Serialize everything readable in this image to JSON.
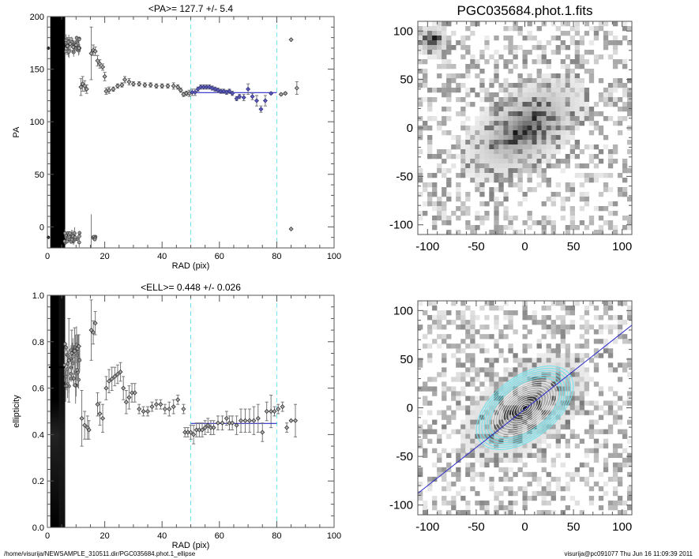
{
  "colors": {
    "points": "#000000",
    "errorbars": "#777777",
    "fit_points": "#5a5ab4",
    "fit_line": "#2a2ac8",
    "range_lines": "#6fe3ee",
    "ellipse_white": "#ffffff",
    "ellipse_cyan": "#6fe3ee"
  },
  "footer": {
    "left": "/home/visurija/NEWSAMPLE_310511.dir/PGC035684.phot.1_ellipse",
    "right": "visurija@pc091077  Thu Jun 16 11:09:39 2011"
  },
  "chart_data": [
    {
      "type": "scatter",
      "title": "<PA>= 127.7 +/-   5.4",
      "xlabel": "RAD (pix)",
      "ylabel": "PA",
      "xlim": [
        0,
        100
      ],
      "ylim": [
        -20,
        200
      ],
      "xticks": [
        "0",
        "20",
        "40",
        "60",
        "80",
        "100"
      ],
      "yticks": [
        "0",
        "50",
        "100",
        "150",
        "200"
      ],
      "fit_range": [
        50,
        80
      ],
      "fit_value": 127.7,
      "fit_error": 5.4,
      "points": [
        {
          "x": 7,
          "y": 172,
          "e": 8
        },
        {
          "x": 8,
          "y": 174,
          "e": 6
        },
        {
          "x": 9,
          "y": 171,
          "e": 5
        },
        {
          "x": 10,
          "y": 173,
          "e": 4
        },
        {
          "x": 11,
          "y": 170,
          "e": 3
        },
        {
          "x": 11.7,
          "y": 133,
          "e": 8
        },
        {
          "x": 12.3,
          "y": 136,
          "e": 7
        },
        {
          "x": 13,
          "y": 134,
          "e": 5
        },
        {
          "x": 13.7,
          "y": 131,
          "e": 4
        },
        {
          "x": 15.3,
          "y": 165,
          "e": 25
        },
        {
          "x": 16,
          "y": 168,
          "e": 5
        },
        {
          "x": 16.7,
          "y": 167,
          "e": 4
        },
        {
          "x": 17.5,
          "y": 158,
          "e": 5
        },
        {
          "x": 18.3,
          "y": 155,
          "e": 4
        },
        {
          "x": 19.3,
          "y": 152,
          "e": 3
        },
        {
          "x": 20,
          "y": 143,
          "e": 4
        },
        {
          "x": 20.5,
          "y": 129,
          "e": 3
        },
        {
          "x": 21.5,
          "y": 130,
          "e": 3
        },
        {
          "x": 23,
          "y": 131,
          "e": 2
        },
        {
          "x": 24.5,
          "y": 134,
          "e": 2
        },
        {
          "x": 26,
          "y": 135,
          "e": 2
        },
        {
          "x": 27,
          "y": 140,
          "e": 3
        },
        {
          "x": 28.5,
          "y": 138,
          "e": 3
        },
        {
          "x": 30,
          "y": 136,
          "e": 2
        },
        {
          "x": 32,
          "y": 136,
          "e": 2
        },
        {
          "x": 34,
          "y": 135,
          "e": 2
        },
        {
          "x": 36,
          "y": 135,
          "e": 2
        },
        {
          "x": 38,
          "y": 134,
          "e": 2
        },
        {
          "x": 40,
          "y": 134,
          "e": 2
        },
        {
          "x": 42,
          "y": 134,
          "e": 2
        },
        {
          "x": 44,
          "y": 134,
          "e": 3
        },
        {
          "x": 45.5,
          "y": 133,
          "e": 2
        },
        {
          "x": 46.5,
          "y": 130,
          "e": 2
        },
        {
          "x": 47.5,
          "y": 126,
          "e": 2
        },
        {
          "x": 48.5,
          "y": 127,
          "e": 2
        },
        {
          "x": 49.5,
          "y": 127,
          "e": 3
        },
        {
          "x": 85,
          "y": 178,
          "e": 0
        },
        {
          "x": 85,
          "y": -2,
          "e": 0
        },
        {
          "x": 81.5,
          "y": 126,
          "e": 1
        },
        {
          "x": 83,
          "y": 127,
          "e": 1
        },
        {
          "x": 87,
          "y": 132,
          "e": 6
        }
      ],
      "fit_points": [
        {
          "x": 50.5,
          "y": 128,
          "e": 3
        },
        {
          "x": 51.5,
          "y": 128,
          "e": 3
        },
        {
          "x": 52.5,
          "y": 131,
          "e": 2
        },
        {
          "x": 53.5,
          "y": 133,
          "e": 2
        },
        {
          "x": 54.5,
          "y": 133,
          "e": 2
        },
        {
          "x": 55.5,
          "y": 133,
          "e": 2
        },
        {
          "x": 56.5,
          "y": 133,
          "e": 2
        },
        {
          "x": 57.5,
          "y": 132,
          "e": 2
        },
        {
          "x": 58.5,
          "y": 131,
          "e": 2
        },
        {
          "x": 59.5,
          "y": 130,
          "e": 2
        },
        {
          "x": 60.5,
          "y": 129,
          "e": 2
        },
        {
          "x": 61.5,
          "y": 129,
          "e": 2
        },
        {
          "x": 62.5,
          "y": 128,
          "e": 2
        },
        {
          "x": 63.5,
          "y": 129,
          "e": 2
        },
        {
          "x": 64.5,
          "y": 127,
          "e": 2
        },
        {
          "x": 66,
          "y": 122,
          "e": 2
        },
        {
          "x": 67,
          "y": 124,
          "e": 2
        },
        {
          "x": 68.5,
          "y": 123,
          "e": 3
        },
        {
          "x": 70,
          "y": 131,
          "e": 5
        },
        {
          "x": 71.5,
          "y": 124,
          "e": 3
        },
        {
          "x": 73,
          "y": 120,
          "e": 5
        },
        {
          "x": 74.5,
          "y": 112,
          "e": 3
        },
        {
          "x": 76,
          "y": 120,
          "e": 5
        },
        {
          "x": 78,
          "y": 127,
          "e": 1
        }
      ]
    },
    {
      "type": "scatter",
      "title": "<ELL>= 0.448 +/-  0.026",
      "xlabel": "RAD (pix)",
      "ylabel": "ellipticity",
      "xlim": [
        0,
        100
      ],
      "ylim": [
        0.0,
        1.0
      ],
      "xticks": [
        "0",
        "20",
        "40",
        "60",
        "80",
        "100"
      ],
      "yticks": [
        "0.0",
        "0.2",
        "0.4",
        "0.6",
        "0.8",
        "1.0"
      ],
      "fit_range": [
        50,
        80
      ],
      "fit_value": 0.448,
      "fit_error": 0.026,
      "points": [
        {
          "x": 7.5,
          "y": 0.72,
          "e": 0.18
        },
        {
          "x": 8.5,
          "y": 0.75,
          "e": 0.1
        },
        {
          "x": 9.5,
          "y": 0.76,
          "e": 0.1
        },
        {
          "x": 10.5,
          "y": 0.77,
          "e": 0.06
        },
        {
          "x": 11,
          "y": 0.78,
          "e": 0.05
        },
        {
          "x": 12,
          "y": 0.47,
          "e": 0.12
        },
        {
          "x": 13,
          "y": 0.44,
          "e": 0.06
        },
        {
          "x": 14,
          "y": 0.43,
          "e": 0.05
        },
        {
          "x": 14.5,
          "y": 0.42,
          "e": 0.04
        },
        {
          "x": 15.3,
          "y": 0.85,
          "e": 0.13
        },
        {
          "x": 16,
          "y": 0.84,
          "e": 0.05
        },
        {
          "x": 16.7,
          "y": 0.88,
          "e": 0.05
        },
        {
          "x": 17.5,
          "y": 0.53,
          "e": 0.05
        },
        {
          "x": 18.3,
          "y": 0.49,
          "e": 0.05
        },
        {
          "x": 19.3,
          "y": 0.47,
          "e": 0.06
        },
        {
          "x": 20.5,
          "y": 0.6,
          "e": 0.05
        },
        {
          "x": 21.5,
          "y": 0.63,
          "e": 0.05
        },
        {
          "x": 22.5,
          "y": 0.64,
          "e": 0.05
        },
        {
          "x": 23.5,
          "y": 0.65,
          "e": 0.04
        },
        {
          "x": 24.5,
          "y": 0.66,
          "e": 0.04
        },
        {
          "x": 25.5,
          "y": 0.67,
          "e": 0.04
        },
        {
          "x": 26.5,
          "y": 0.6,
          "e": 0.05
        },
        {
          "x": 27.5,
          "y": 0.54,
          "e": 0.05
        },
        {
          "x": 28.5,
          "y": 0.56,
          "e": 0.05
        },
        {
          "x": 29.5,
          "y": 0.58,
          "e": 0.04
        },
        {
          "x": 30.5,
          "y": 0.58,
          "e": 0.04
        },
        {
          "x": 32,
          "y": 0.51,
          "e": 0.02
        },
        {
          "x": 33.5,
          "y": 0.5,
          "e": 0.02
        },
        {
          "x": 35,
          "y": 0.5,
          "e": 0.02
        },
        {
          "x": 36.5,
          "y": 0.52,
          "e": 0.02
        },
        {
          "x": 38,
          "y": 0.53,
          "e": 0.02
        },
        {
          "x": 39.5,
          "y": 0.53,
          "e": 0.02
        },
        {
          "x": 41,
          "y": 0.51,
          "e": 0.02
        },
        {
          "x": 42.5,
          "y": 0.51,
          "e": 0.03
        },
        {
          "x": 44,
          "y": 0.52,
          "e": 0.03
        },
        {
          "x": 45.5,
          "y": 0.55,
          "e": 0.02
        },
        {
          "x": 47.5,
          "y": 0.51,
          "e": 0.02
        },
        {
          "x": 48,
          "y": 0.41,
          "e": 0.02
        },
        {
          "x": 49,
          "y": 0.41,
          "e": 0.02
        },
        {
          "x": 78,
          "y": 0.5,
          "e": 0.07
        },
        {
          "x": 79.2,
          "y": 0.5,
          "e": 0.02
        },
        {
          "x": 80.5,
          "y": 0.51,
          "e": 0.02
        },
        {
          "x": 82,
          "y": 0.52,
          "e": 0.02
        },
        {
          "x": 83.5,
          "y": 0.43,
          "e": 0.02
        },
        {
          "x": 85,
          "y": 0.46,
          "e": 0.0
        },
        {
          "x": 86.5,
          "y": 0.46,
          "e": 0.07
        }
      ],
      "fit_points": [
        {
          "x": 50,
          "y": 0.41,
          "e": 0.03
        },
        {
          "x": 51,
          "y": 0.4,
          "e": 0.04
        },
        {
          "x": 52,
          "y": 0.42,
          "e": 0.03
        },
        {
          "x": 53,
          "y": 0.42,
          "e": 0.03
        },
        {
          "x": 54,
          "y": 0.42,
          "e": 0.03
        },
        {
          "x": 55,
          "y": 0.43,
          "e": 0.03
        },
        {
          "x": 56,
          "y": 0.44,
          "e": 0.03
        },
        {
          "x": 57,
          "y": 0.43,
          "e": 0.03
        },
        {
          "x": 58,
          "y": 0.43,
          "e": 0.03
        },
        {
          "x": 59.5,
          "y": 0.45,
          "e": 0.03
        },
        {
          "x": 61,
          "y": 0.45,
          "e": 0.03
        },
        {
          "x": 62.5,
          "y": 0.47,
          "e": 0.03
        },
        {
          "x": 63.5,
          "y": 0.45,
          "e": 0.03
        },
        {
          "x": 64.5,
          "y": 0.45,
          "e": 0.03
        },
        {
          "x": 66,
          "y": 0.44,
          "e": 0.04
        },
        {
          "x": 67.5,
          "y": 0.46,
          "e": 0.05
        },
        {
          "x": 69,
          "y": 0.46,
          "e": 0.05
        },
        {
          "x": 70.5,
          "y": 0.46,
          "e": 0.05
        },
        {
          "x": 72,
          "y": 0.46,
          "e": 0.06
        },
        {
          "x": 73.5,
          "y": 0.47,
          "e": 0.06
        },
        {
          "x": 75,
          "y": 0.41,
          "e": 0.04
        },
        {
          "x": 76.5,
          "y": 0.5,
          "e": 0.04
        }
      ]
    },
    {
      "type": "heatmap",
      "title": "PGC035684.phot.1.fits",
      "xlim": [
        -110,
        110
      ],
      "ylim": [
        -110,
        110
      ],
      "xticks": [
        "-100",
        "-50",
        "0",
        "50",
        "100"
      ],
      "yticks": [
        "-100",
        "-50",
        "0",
        "50",
        "100"
      ],
      "colormap": "gray-inverted"
    },
    {
      "type": "heatmap",
      "title": "",
      "xlim": [
        -110,
        110
      ],
      "ylim": [
        -110,
        110
      ],
      "xticks": [
        "-100",
        "-50",
        "0",
        "50",
        "100"
      ],
      "yticks": [
        "-100",
        "-50",
        "0",
        "50",
        "100"
      ],
      "colormap": "gray-inverted",
      "overlay": {
        "ellipse_pa": 127.7,
        "ellipse_ell": 0.448,
        "major_axis_line": true
      }
    }
  ]
}
